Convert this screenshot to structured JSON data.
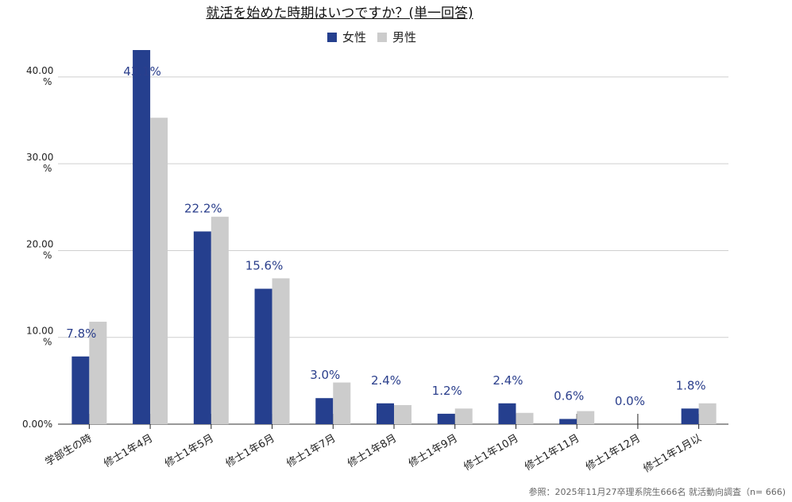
{
  "chart_data": {
    "type": "bar",
    "title": "就活を始めた時期はいつですか？(単一回答)",
    "categories": [
      "学部生の時",
      "修士1年4月",
      "修士1年5月",
      "修士1年6月",
      "修士1年7月",
      "修士1年8月",
      "修士1年9月",
      "修士1年10月",
      "修士1年11月",
      "修士1年12月",
      "修士1年1月以"
    ],
    "series": [
      {
        "name": "女性",
        "color": "#253f8e",
        "values": [
          7.8,
          43.1,
          22.2,
          15.6,
          3.0,
          2.4,
          1.2,
          2.4,
          0.6,
          0.0,
          1.8
        ]
      },
      {
        "name": "男性",
        "color": "#cccccc",
        "values": [
          11.8,
          35.3,
          23.9,
          16.8,
          4.8,
          2.2,
          1.8,
          1.3,
          1.5,
          0.0,
          2.4
        ]
      }
    ],
    "data_labels": [
      "7.8%",
      "43.1%",
      "22.2%",
      "15.6%",
      "3.0%",
      "2.4%",
      "1.2%",
      "2.4%",
      "0.6%",
      "0.0%",
      "1.8%"
    ],
    "yticks": [
      {
        "value": 0,
        "label": "0.00%"
      },
      {
        "value": 10,
        "label": "10.00\n%"
      },
      {
        "value": 20,
        "label": "20.00\n%"
      },
      {
        "value": 30,
        "label": "30.00\n%"
      },
      {
        "value": 40,
        "label": "40.00\n%"
      }
    ],
    "ylim": [
      0,
      43.1
    ],
    "grid": true,
    "legend_position": "top-center",
    "xlabel": "",
    "ylabel": ""
  },
  "source_note": "参照：2025年11月27卒理系院生666名 就活動向調査（n= 666)"
}
